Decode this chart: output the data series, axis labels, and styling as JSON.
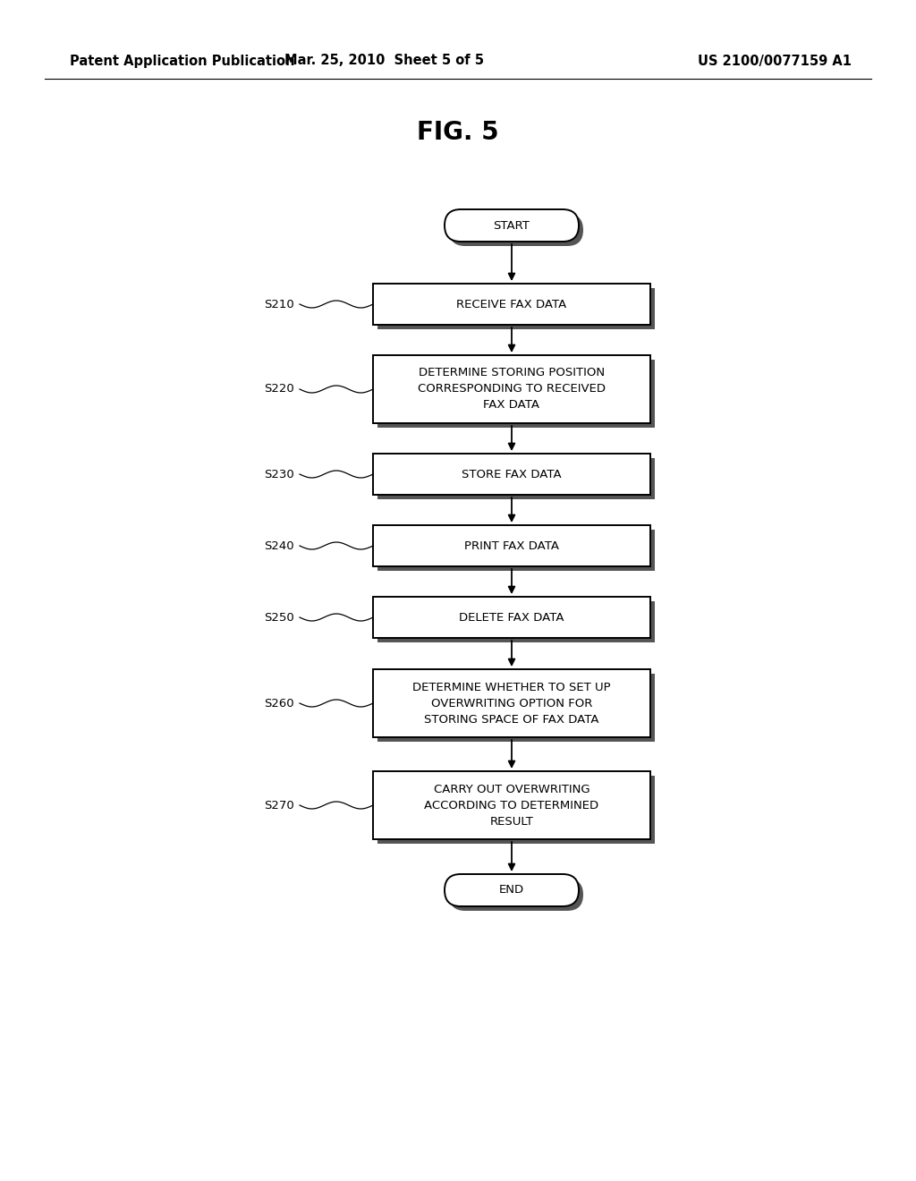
{
  "background_color": "#ffffff",
  "header_left": "Patent Application Publication",
  "header_mid": "Mar. 25, 2010  Sheet 5 of 5",
  "header_right": "US 2100/0077159 A1",
  "fig_title": "FIG. 5",
  "steps": [
    {
      "id": "start",
      "type": "oval",
      "text": "START",
      "label": null,
      "lines": 1
    },
    {
      "id": "s210",
      "type": "rect",
      "text": "RECEIVE FAX DATA",
      "label": "S210",
      "lines": 1
    },
    {
      "id": "s220",
      "type": "rect",
      "text": "DETERMINE STORING POSITION\nCORRESPONDING TO RECEIVED\nFAX DATA",
      "label": "S220",
      "lines": 3
    },
    {
      "id": "s230",
      "type": "rect",
      "text": "STORE FAX DATA",
      "label": "S230",
      "lines": 1
    },
    {
      "id": "s240",
      "type": "rect",
      "text": "PRINT FAX DATA",
      "label": "S240",
      "lines": 1
    },
    {
      "id": "s250",
      "type": "rect",
      "text": "DELETE FAX DATA",
      "label": "S250",
      "lines": 1
    },
    {
      "id": "s260",
      "type": "rect",
      "text": "DETERMINE WHETHER TO SET UP\nOVERWRITING OPTION FOR\nSTORING SPACE OF FAX DATA",
      "label": "S260",
      "lines": 3
    },
    {
      "id": "s270",
      "type": "rect",
      "text": "CARRY OUT OVERWRITING\nACCORDING TO DETERMINED\nRESULT",
      "label": "S270",
      "lines": 3
    },
    {
      "id": "end",
      "type": "oval",
      "text": "END",
      "label": null,
      "lines": 1
    }
  ],
  "box_edge_color": "#000000",
  "box_face_color": "#ffffff",
  "shadow_color": "#555555",
  "text_color": "#000000",
  "font_family": "DejaVu Sans",
  "header_fontsize": 10.5,
  "fig_title_fontsize": 20,
  "step_fontsize": 9.5,
  "label_fontsize": 9.5,
  "arrow_color": "#000000"
}
